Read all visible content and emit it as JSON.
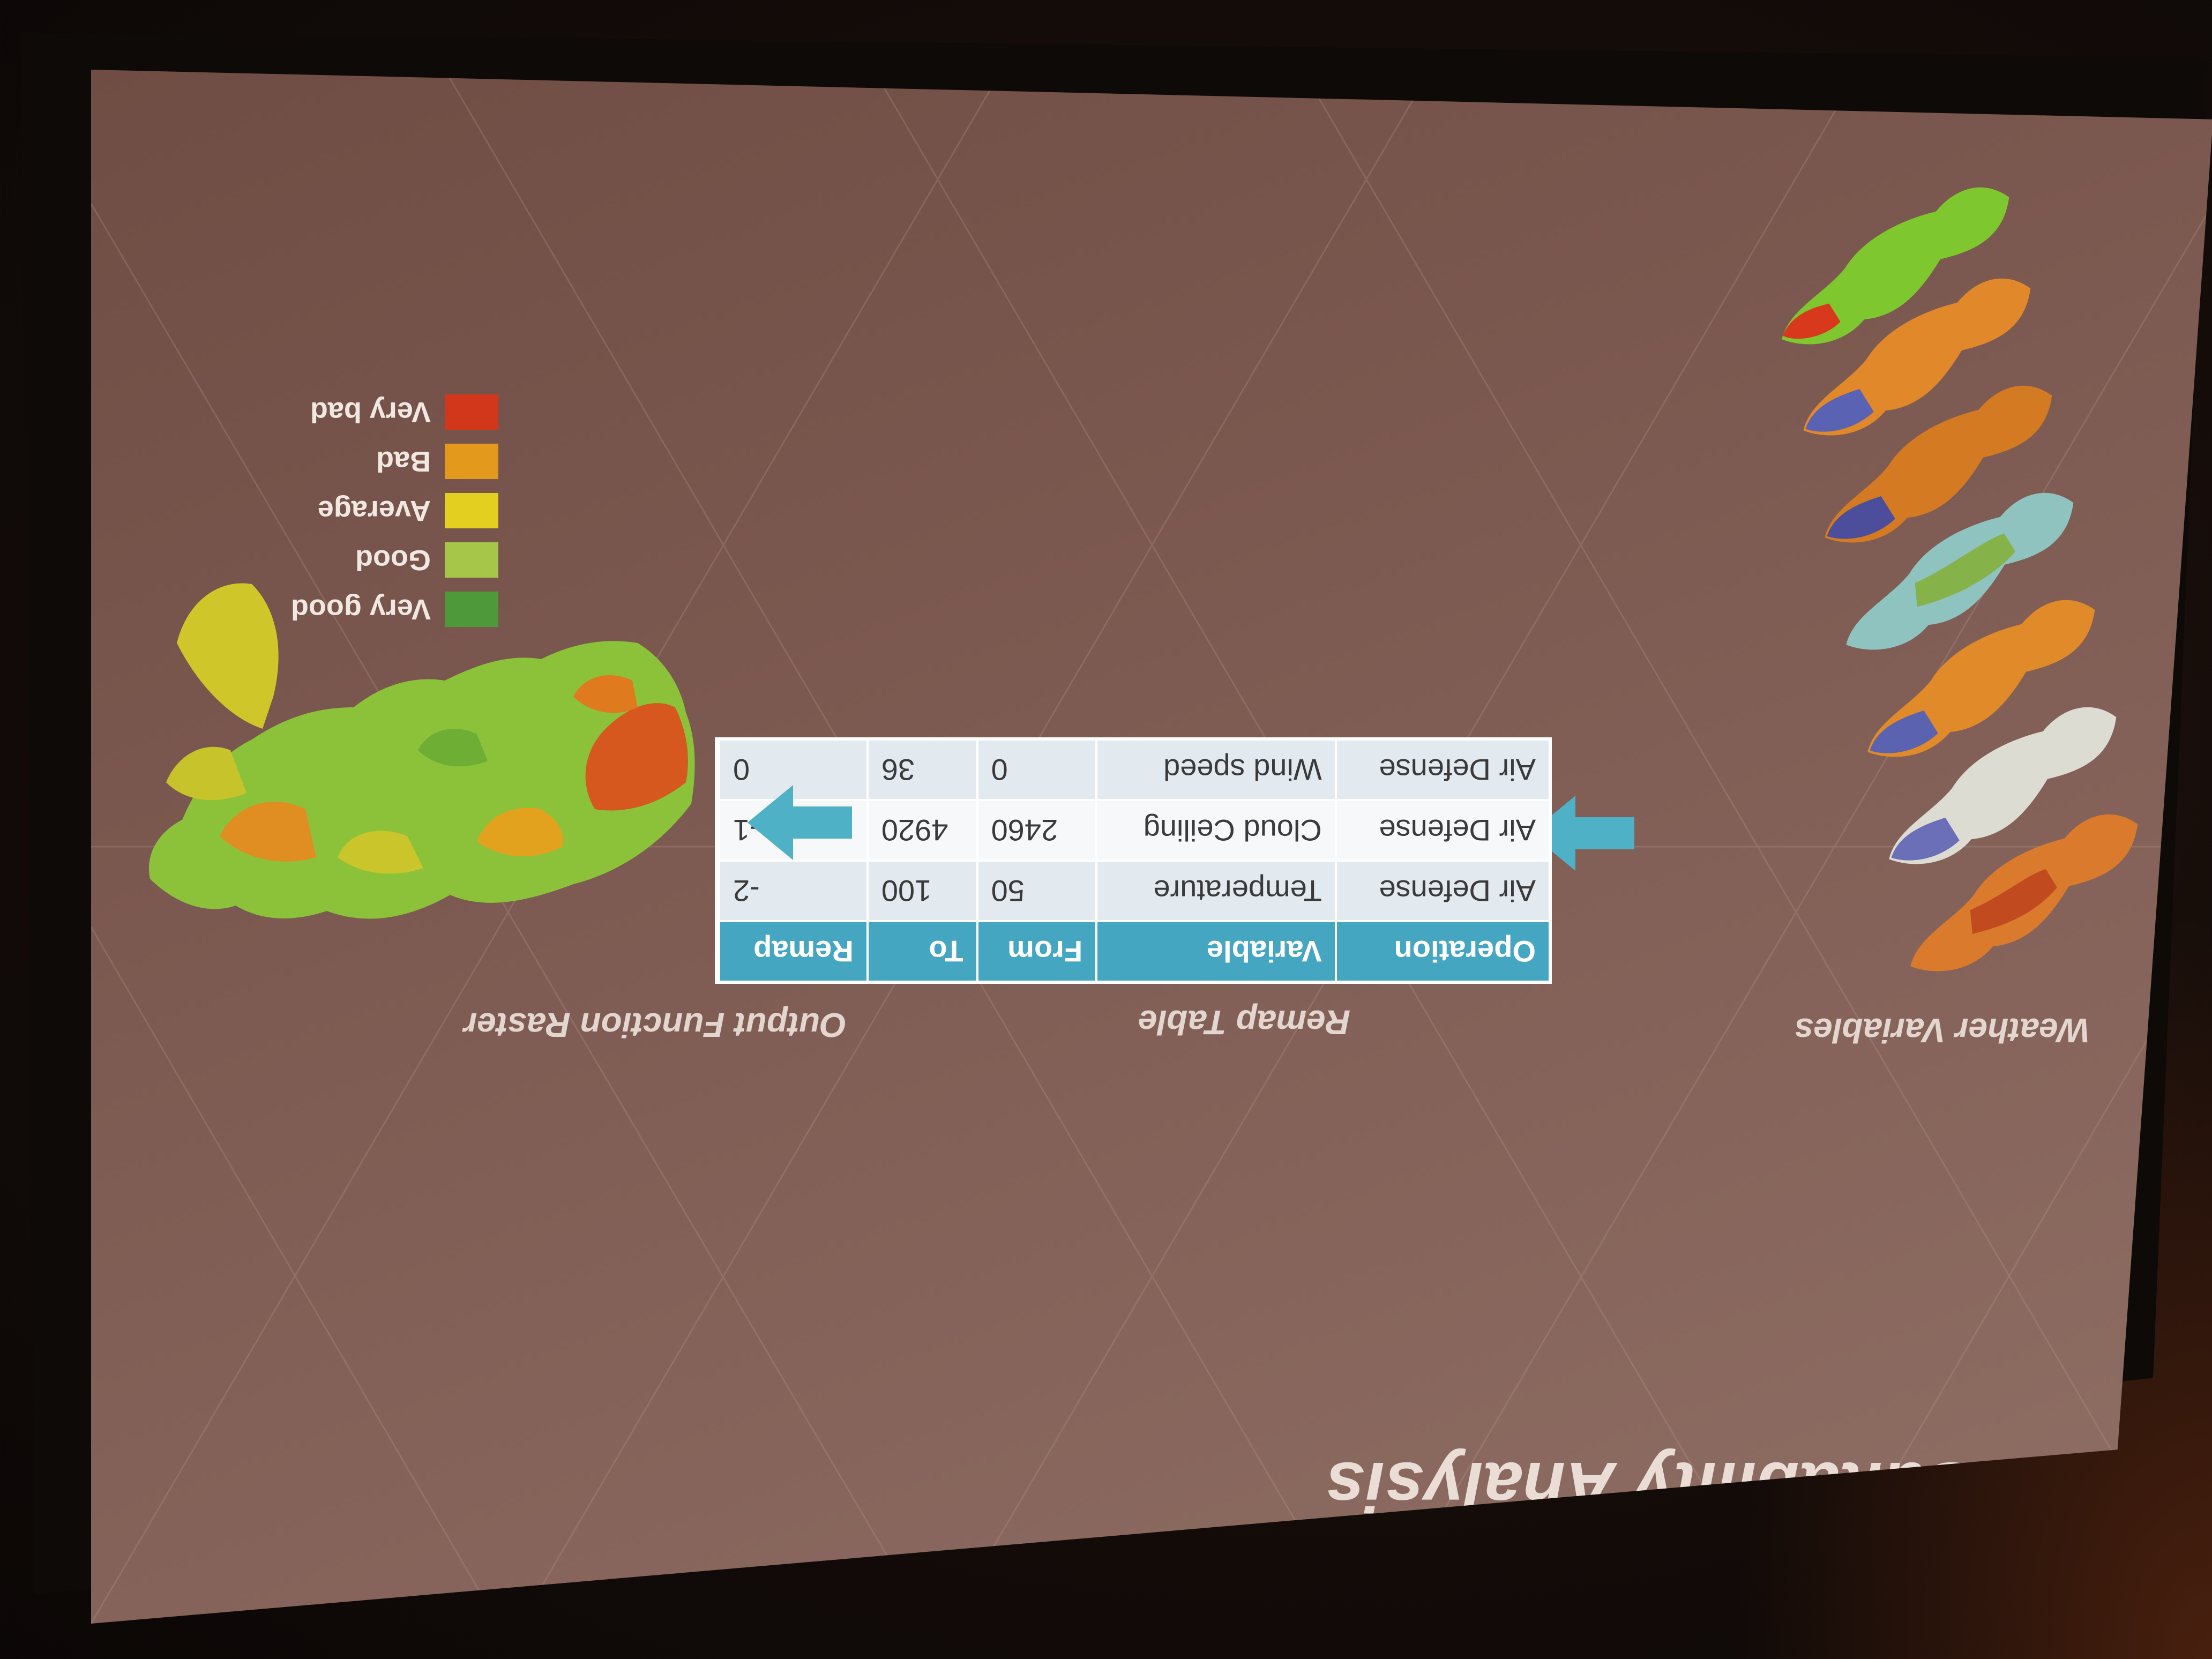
{
  "slide": {
    "title": "Site Suitability Analysis",
    "labels": {
      "weather": "Weather Variables",
      "remap": "Remap Table",
      "output": "Output Function Raster"
    }
  },
  "table": {
    "headers": [
      "Operation",
      "Variable",
      "From",
      "To",
      "Remap"
    ],
    "rows": [
      [
        "Air Defense",
        "Temperature",
        "50",
        "100",
        "-2"
      ],
      [
        "Air Defense",
        "Cloud Ceiling",
        "2460",
        "4920",
        "-1"
      ],
      [
        "Air Defense",
        "Wind speed",
        "0",
        "36",
        "0"
      ]
    ]
  },
  "legend": [
    {
      "label": "Very good",
      "color": "#4e9a3a"
    },
    {
      "label": "Good",
      "color": "#a6c64a"
    },
    {
      "label": "Average",
      "color": "#e2cf1f"
    },
    {
      "label": "Bad",
      "color": "#e39a1c"
    },
    {
      "label": "Very bad",
      "color": "#d2371c"
    }
  ],
  "colors": {
    "table_header": "#45a6c1",
    "arrow": "#4fb1c6"
  }
}
